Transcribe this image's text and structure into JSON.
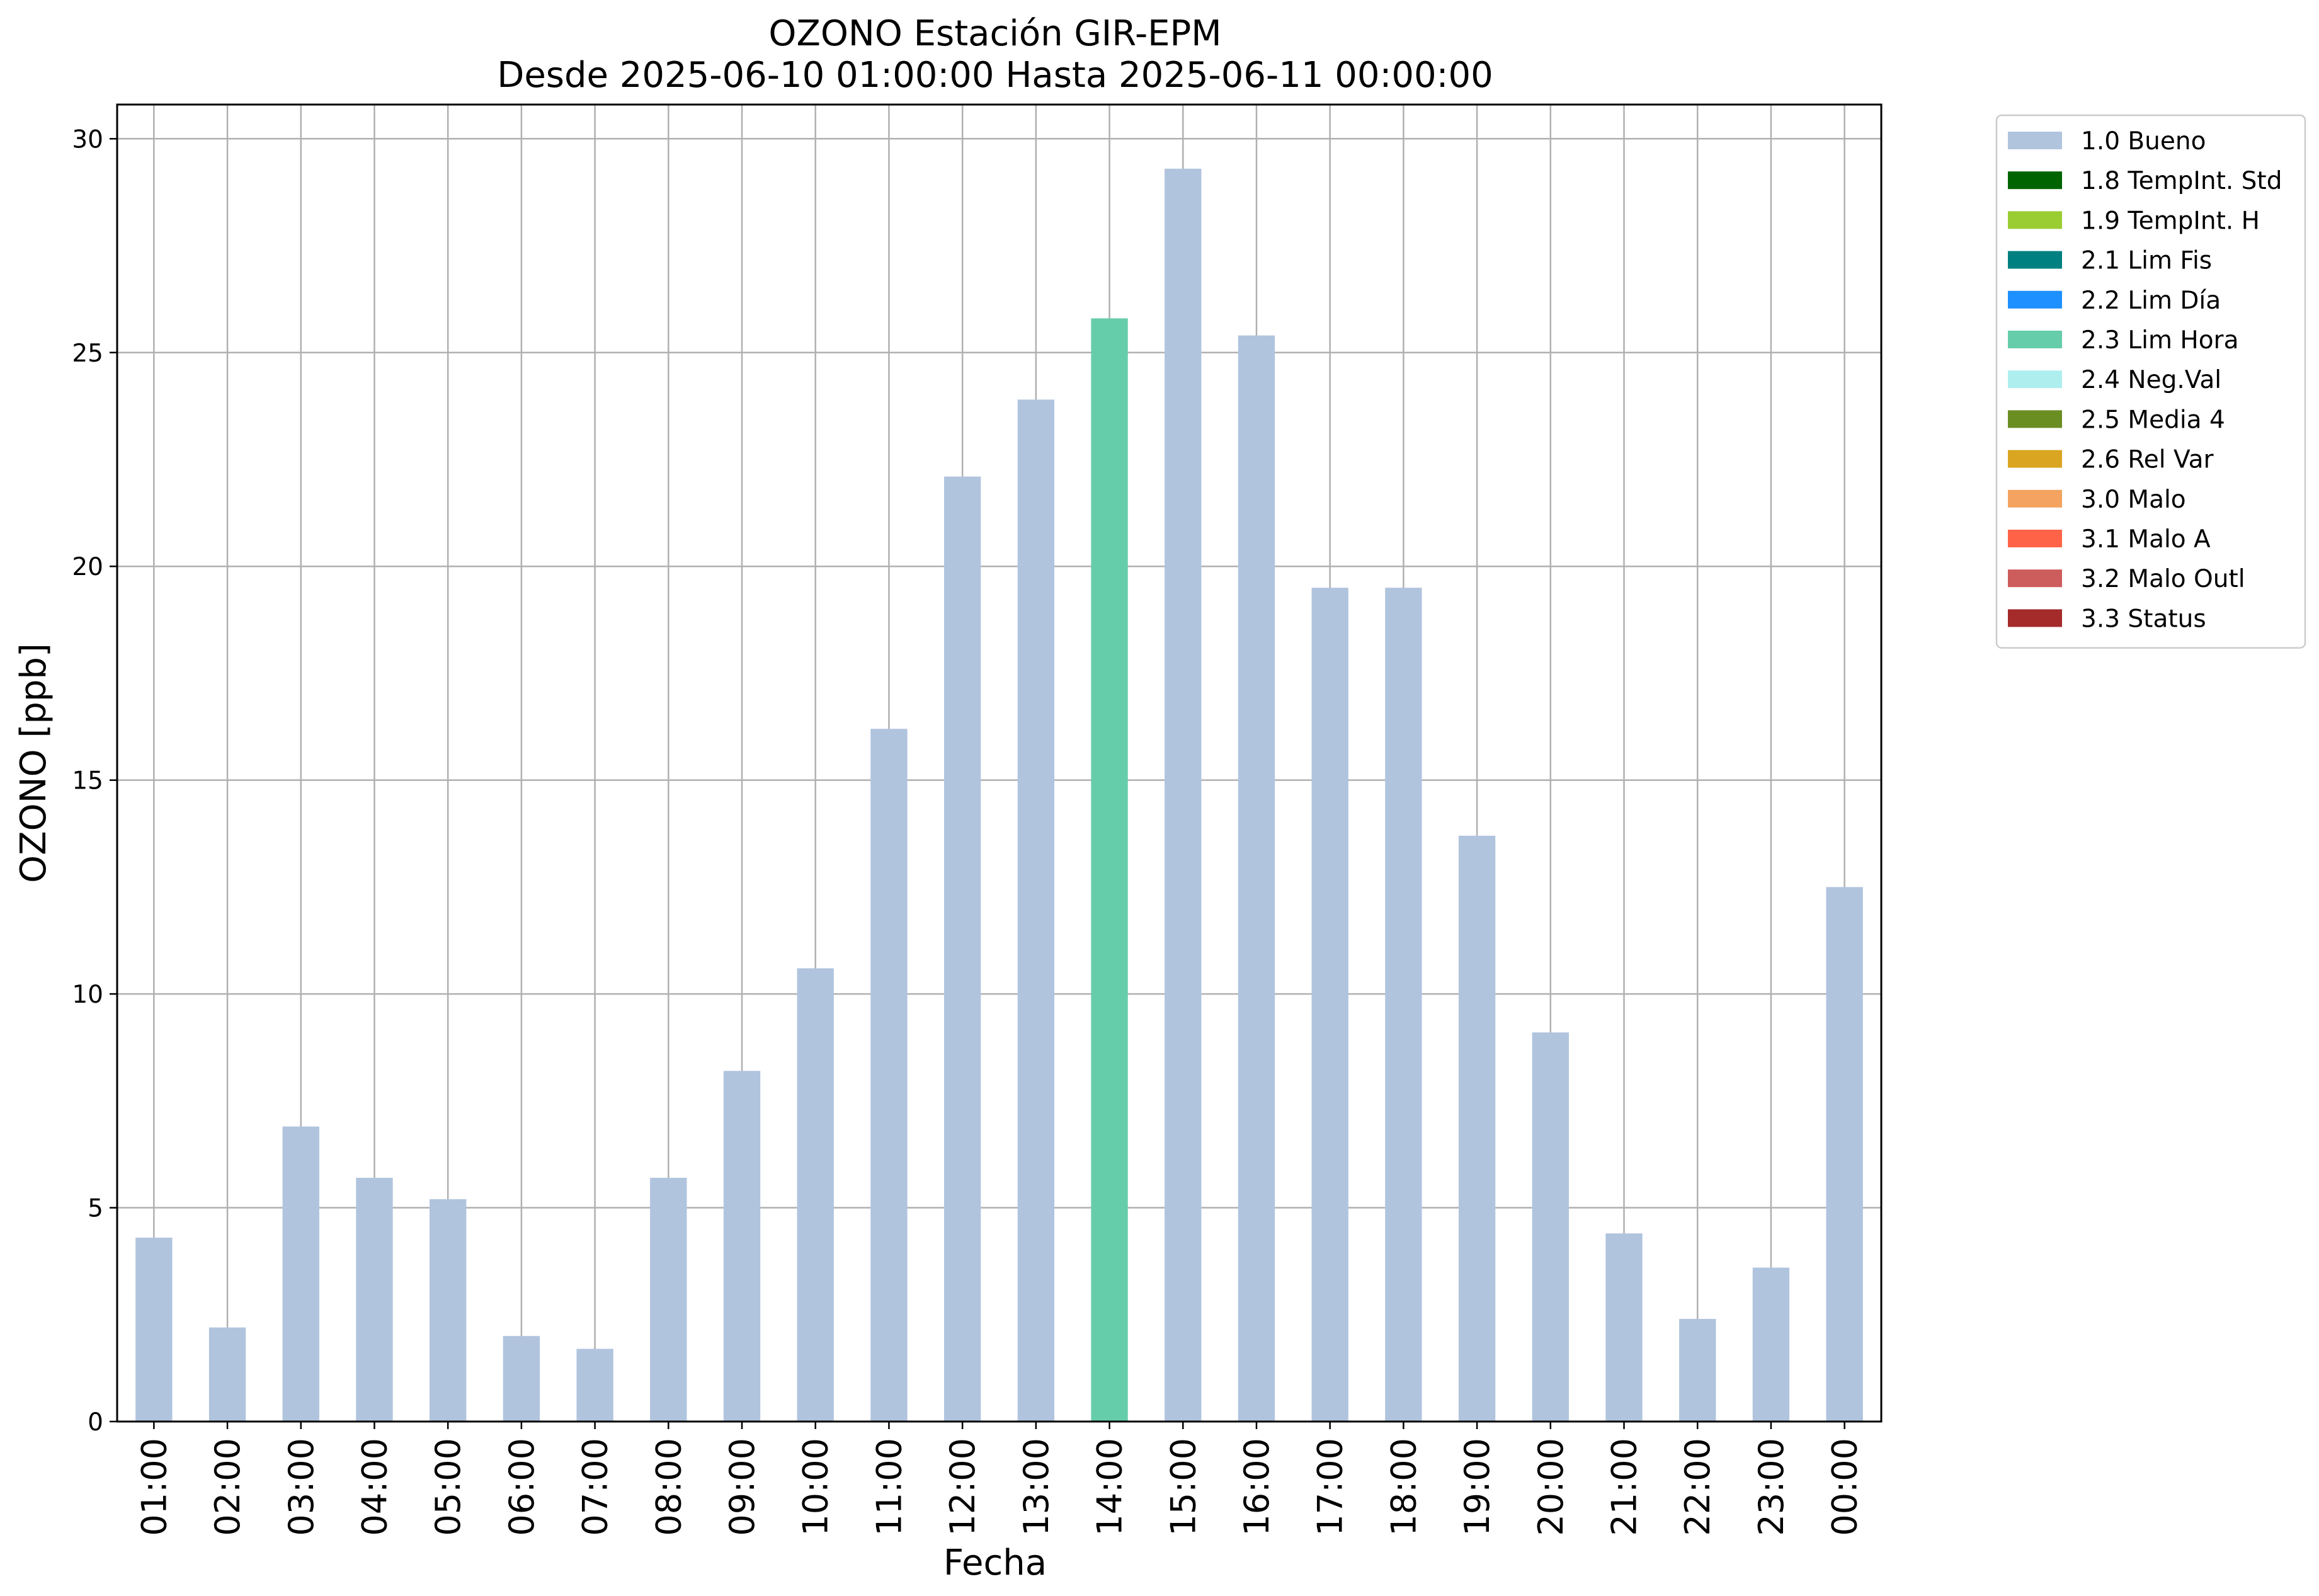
{
  "chart_data": {
    "type": "bar",
    "title": "OZONO Estación GIR-EPM",
    "subtitle": "Desde 2025-06-10 01:00:00 Hasta 2025-06-11 00:00:00",
    "xlabel": "Fecha",
    "ylabel": "OZONO [ppb]",
    "ylim": [
      0,
      30.8
    ],
    "yticks": [
      0,
      5,
      10,
      15,
      20,
      25,
      30
    ],
    "grid": true,
    "legend_position": "outside-top-right",
    "categories": [
      "01:00",
      "02:00",
      "03:00",
      "04:00",
      "05:00",
      "06:00",
      "07:00",
      "08:00",
      "09:00",
      "10:00",
      "11:00",
      "12:00",
      "13:00",
      "14:00",
      "15:00",
      "16:00",
      "17:00",
      "18:00",
      "19:00",
      "20:00",
      "21:00",
      "22:00",
      "23:00",
      "00:00"
    ],
    "values": [
      4.3,
      2.2,
      6.9,
      5.7,
      5.2,
      2.0,
      1.7,
      5.7,
      8.2,
      10.6,
      16.2,
      22.1,
      23.9,
      25.8,
      29.3,
      25.4,
      19.5,
      19.5,
      13.7,
      9.1,
      4.4,
      2.4,
      3.6,
      12.5
    ],
    "bar_flags": [
      "1.0 Bueno",
      "1.0 Bueno",
      "1.0 Bueno",
      "1.0 Bueno",
      "1.0 Bueno",
      "1.0 Bueno",
      "1.0 Bueno",
      "1.0 Bueno",
      "1.0 Bueno",
      "1.0 Bueno",
      "1.0 Bueno",
      "1.0 Bueno",
      "1.0 Bueno",
      "2.3 Lim Hora",
      "1.0 Bueno",
      "1.0 Bueno",
      "1.0 Bueno",
      "1.0 Bueno",
      "1.0 Bueno",
      "1.0 Bueno",
      "1.0 Bueno",
      "1.0 Bueno",
      "1.0 Bueno",
      "1.0 Bueno"
    ],
    "legend": [
      {
        "label": "1.0 Bueno",
        "color": "#b0c4de"
      },
      {
        "label": "1.8 TempInt. Std",
        "color": "#006400"
      },
      {
        "label": "1.9 TempInt. H",
        "color": "#9acd32"
      },
      {
        "label": "2.1 Lim Fis",
        "color": "#008080"
      },
      {
        "label": "2.2 Lim Día",
        "color": "#1e90ff"
      },
      {
        "label": "2.3 Lim Hora",
        "color": "#66cdaa"
      },
      {
        "label": "2.4 Neg.Val",
        "color": "#afeeee"
      },
      {
        "label": "2.5 Media 4",
        "color": "#6b8e23"
      },
      {
        "label": "2.6 Rel Var",
        "color": "#daa520"
      },
      {
        "label": "3.0 Malo",
        "color": "#f4a460"
      },
      {
        "label": "3.1 Malo A",
        "color": "#ff6347"
      },
      {
        "label": "3.2 Malo Outl",
        "color": "#cd5c5c"
      },
      {
        "label": "3.3 Status",
        "color": "#a52a2a"
      }
    ]
  }
}
